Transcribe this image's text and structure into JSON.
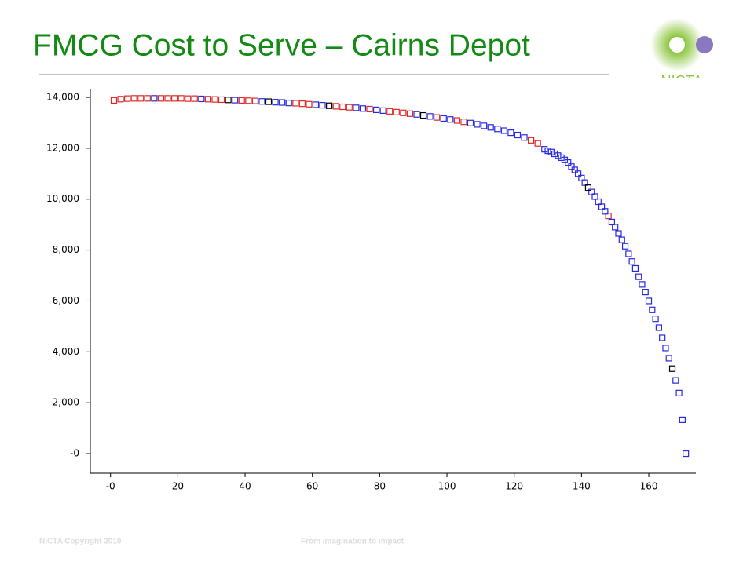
{
  "header": {
    "title": "FMCG Cost to Serve – Cairns Depot",
    "logo": "NICTA"
  },
  "footer": {
    "copyright": "NICTA Copyright 2010",
    "tagline": "From imagination  to impact"
  },
  "chart_data": {
    "type": "scatter",
    "xlim": [
      -6,
      174
    ],
    "ylim": [
      -770,
      14340
    ],
    "xticks": [
      {
        "value": 0,
        "label": "-0"
      },
      20,
      40,
      60,
      80,
      100,
      120,
      140,
      160
    ],
    "yticks": [
      {
        "value": 0,
        "label": "-0"
      },
      {
        "value": 2000,
        "label": "2,000"
      },
      {
        "value": 4000,
        "label": "4,000"
      },
      {
        "value": 6000,
        "label": "6,000"
      },
      {
        "value": 8000,
        "label": "8,000"
      },
      {
        "value": 10000,
        "label": "10,000"
      },
      {
        "value": 12000,
        "label": "12,000"
      },
      {
        "value": 14000,
        "label": "14,000"
      }
    ],
    "series": [
      {
        "color": "#e02828",
        "x": [
          1,
          3,
          5,
          7,
          9,
          11,
          15,
          17,
          19,
          21,
          23,
          25,
          29,
          31,
          33,
          39,
          41,
          43,
          55,
          57,
          59,
          67,
          69,
          71,
          77,
          83,
          85,
          87,
          89,
          97,
          103,
          105,
          125,
          127,
          148
        ],
        "values": [
          13880,
          13930,
          13950,
          13960,
          13960,
          13960,
          13960,
          13960,
          13960,
          13960,
          13950,
          13950,
          13930,
          13920,
          13910,
          13880,
          13870,
          13860,
          13770,
          13750,
          13730,
          13650,
          13630,
          13610,
          13540,
          13450,
          13420,
          13390,
          13360,
          13210,
          13090,
          13040,
          12310,
          12190,
          9340
        ]
      },
      {
        "color": "#2828e0",
        "x": [
          13,
          27,
          37,
          45,
          49,
          51,
          53,
          61,
          63,
          73,
          75,
          79,
          81,
          91,
          95,
          99,
          101,
          107,
          109,
          111,
          113,
          115,
          117,
          119,
          121,
          123,
          129,
          130,
          131,
          132,
          133,
          134,
          135,
          136,
          137,
          138,
          139,
          140,
          141,
          143,
          144,
          145,
          146,
          147,
          149,
          150,
          151,
          152,
          153,
          154,
          155,
          156,
          157,
          158,
          159,
          160,
          161,
          162,
          163,
          164,
          165,
          166,
          168,
          169,
          170,
          171
        ],
        "values": [
          13960,
          13940,
          13890,
          13840,
          13810,
          13800,
          13780,
          13710,
          13690,
          13590,
          13560,
          13510,
          13480,
          13330,
          13250,
          13170,
          13130,
          12990,
          12940,
          12880,
          12820,
          12760,
          12690,
          12610,
          12520,
          12420,
          11960,
          11900,
          11850,
          11780,
          11710,
          11630,
          11540,
          11440,
          11280,
          11150,
          11000,
          10830,
          10650,
          10280,
          10100,
          9900,
          9700,
          9520,
          9100,
          8900,
          8650,
          8400,
          8150,
          7850,
          7550,
          7280,
          6950,
          6650,
          6350,
          6000,
          5650,
          5300,
          4950,
          4550,
          4150,
          3750,
          2880,
          2380,
          1330,
          0
        ]
      },
      {
        "color": "#000000",
        "x": [
          35,
          47,
          65,
          93,
          142,
          167
        ],
        "values": [
          13900,
          13830,
          13670,
          13290,
          10450,
          3340
        ]
      }
    ]
  }
}
